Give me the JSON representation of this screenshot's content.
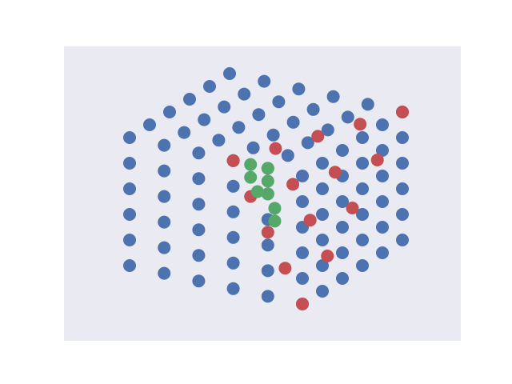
{
  "chart_data": {
    "type": "scatter3d",
    "xlim": [
      0,
      5
    ],
    "ylim": [
      0,
      5
    ],
    "zlim": [
      0,
      5
    ],
    "series": [
      {
        "color": "#4c72b0",
        "x": [
          0,
          0,
          0,
          0,
          0,
          0,
          1,
          1,
          1,
          1,
          1,
          1,
          2,
          2,
          2,
          2,
          2,
          2,
          3,
          3,
          3,
          3,
          3,
          3,
          4,
          4,
          4,
          4,
          4,
          4,
          5,
          5,
          5,
          5,
          5,
          5,
          0,
          0,
          0,
          0,
          0,
          1,
          1,
          1,
          1,
          1,
          2,
          2,
          2,
          2,
          2,
          3,
          3,
          3,
          3,
          3,
          4,
          4,
          4,
          4,
          4,
          5,
          5,
          5,
          5,
          5,
          5,
          5,
          5,
          5,
          5,
          5,
          5,
          5,
          5,
          5,
          5,
          5,
          5,
          5,
          5,
          5,
          5,
          5,
          5,
          5,
          5,
          5,
          5,
          5,
          5
        ],
        "y": [
          0,
          1,
          2,
          3,
          4,
          5,
          0,
          1,
          2,
          3,
          4,
          5,
          0,
          1,
          2,
          3,
          4,
          5,
          0,
          1,
          2,
          3,
          4,
          5,
          0,
          1,
          2,
          3,
          4,
          5,
          0,
          1,
          2,
          3,
          4,
          5,
          0,
          0,
          0,
          0,
          0,
          0,
          0,
          0,
          0,
          0,
          0,
          0,
          0,
          0,
          0,
          0,
          0,
          0,
          0,
          0,
          0,
          0,
          0,
          0,
          0,
          0,
          0,
          0,
          0,
          0,
          1,
          1,
          1,
          1,
          1,
          2,
          2,
          2,
          2,
          2,
          3,
          3,
          3,
          3,
          3,
          4,
          4,
          4,
          4,
          4,
          5,
          5,
          5,
          5,
          5
        ],
        "z": [
          5,
          5,
          5,
          5,
          5,
          5,
          5,
          5,
          5,
          5,
          5,
          5,
          5,
          5,
          5,
          5,
          5,
          5,
          5,
          5,
          5,
          5,
          5,
          5,
          5,
          5,
          5,
          5,
          5,
          5,
          5,
          5,
          5,
          5,
          5,
          5,
          0,
          1,
          2,
          3,
          4,
          0,
          1,
          2,
          3,
          4,
          0,
          1,
          2,
          3,
          4,
          0,
          1,
          2,
          3,
          4,
          0,
          1,
          2,
          3,
          4,
          0,
          1,
          2,
          3,
          4,
          0,
          1,
          2,
          3,
          4,
          0,
          1,
          2,
          3,
          4,
          0,
          1,
          2,
          3,
          4,
          0,
          1,
          2,
          3,
          4,
          0,
          1,
          2,
          3,
          4
        ]
      },
      {
        "color": "#c44e52",
        "x": [
          5,
          5,
          5,
          5,
          5,
          4.5,
          4.5,
          4.5,
          4.5,
          4,
          4,
          4,
          3.5,
          3.5,
          3
        ],
        "y": [
          0,
          1.25,
          2.5,
          3.75,
          5,
          0,
          1.25,
          2.5,
          3.75,
          0,
          1.25,
          2.5,
          0,
          1.25,
          0
        ],
        "z": [
          0,
          1.25,
          2.5,
          3.75,
          5,
          1.25,
          2.5,
          3.75,
          5,
          2.5,
          3.75,
          5,
          3.75,
          5,
          5
        ]
      },
      {
        "color": "#55a868",
        "x": [
          3.5,
          4,
          3.5,
          4,
          4,
          3.7,
          4.2,
          4.2
        ],
        "y": [
          0,
          0,
          0,
          0,
          0,
          0,
          0,
          0
        ],
        "z": [
          5,
          5,
          4.5,
          4.5,
          4,
          4,
          3.5,
          3
        ]
      }
    ]
  }
}
